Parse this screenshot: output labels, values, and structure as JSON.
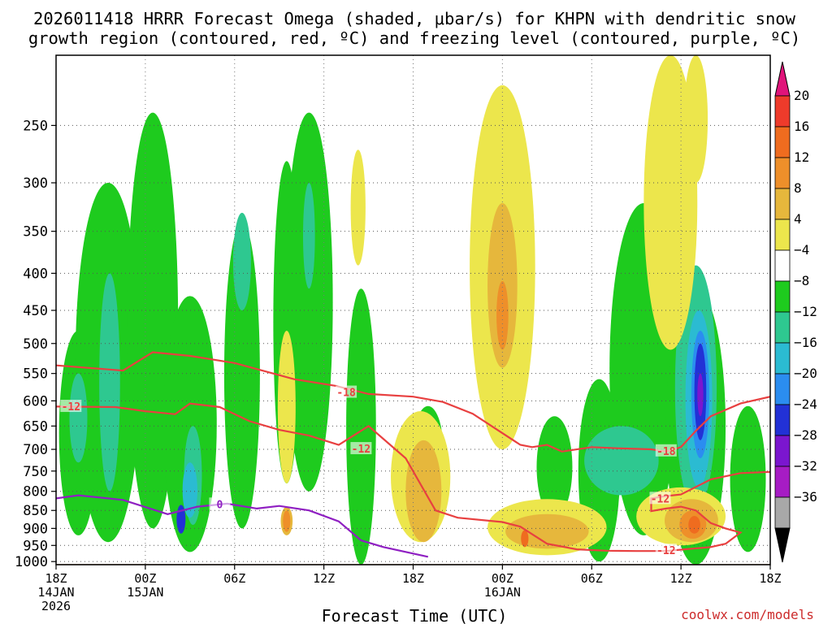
{
  "chart_data": {
    "type": "heatmap",
    "title_line1": "2026011418 HRRR Forecast Omega (shaded, μbar/s) for KHPN with dendritic snow",
    "title_line2": "growth region (contoured, red, ºC) and freezing level (contoured, purple, ºC)",
    "xlabel": "Forecast Time (UTC)",
    "credit": "coolwx.com/models",
    "x_range_hours": [
      0,
      48
    ],
    "y_range_hpa": [
      1010,
      200
    ],
    "y_ticks": [
      250,
      300,
      350,
      400,
      450,
      500,
      550,
      600,
      650,
      700,
      750,
      800,
      850,
      900,
      950,
      1000
    ],
    "x_ticks": [
      {
        "hour": 0,
        "lines": [
          "18Z",
          "14JAN",
          "2026"
        ]
      },
      {
        "hour": 6,
        "lines": [
          "00Z",
          "15JAN"
        ]
      },
      {
        "hour": 12,
        "lines": [
          "06Z"
        ]
      },
      {
        "hour": 18,
        "lines": [
          "12Z"
        ]
      },
      {
        "hour": 24,
        "lines": [
          "18Z"
        ]
      },
      {
        "hour": 30,
        "lines": [
          "00Z",
          "16JAN"
        ]
      },
      {
        "hour": 36,
        "lines": [
          "06Z"
        ]
      },
      {
        "hour": 42,
        "lines": [
          "12Z"
        ]
      },
      {
        "hour": 48,
        "lines": [
          "18Z"
        ]
      }
    ],
    "colorbar": {
      "levels": [
        20,
        16,
        12,
        8,
        4,
        -4,
        -8,
        -12,
        -16,
        -20,
        -24,
        -28,
        -32,
        -36
      ],
      "bins": [
        {
          "range": ">20",
          "color": "#e0147a"
        },
        {
          "range": "16 to 20",
          "color": "#ee3b2b"
        },
        {
          "range": "12 to 16",
          "color": "#ef6c1f"
        },
        {
          "range": "8 to 12",
          "color": "#ee8f2a"
        },
        {
          "range": "4 to 8",
          "color": "#e6b73c"
        },
        {
          "range": "0 to 4",
          "color": "#ece64c"
        },
        {
          "range": "-4 to 4",
          "color": "#ffffff"
        },
        {
          "range": "-8 to -4",
          "color": "#1ecb1e"
        },
        {
          "range": "-12 to -8",
          "color": "#2ec890"
        },
        {
          "range": "-16 to -12",
          "color": "#2bbbd2"
        },
        {
          "range": "-20 to -16",
          "color": "#2b8df0"
        },
        {
          "range": "-24 to -20",
          "color": "#2231d6"
        },
        {
          "range": "-28 to -24",
          "color": "#7b16cf"
        },
        {
          "range": "-32 to -28",
          "color": "#a61cc4"
        },
        {
          "range": "-36 to -32",
          "color": "#a8a8a8"
        },
        {
          "range": "<-36",
          "color": "#000000"
        }
      ]
    },
    "contours": {
      "dgz_upper_-18C": {
        "label": "-18",
        "color": "#e84040",
        "points": [
          [
            0,
            536
          ],
          [
            4.5,
            545
          ],
          [
            6.5,
            514
          ],
          [
            9,
            520
          ],
          [
            12,
            532
          ],
          [
            16,
            560
          ],
          [
            18.8,
            572
          ],
          [
            21,
            587
          ],
          [
            24,
            592
          ],
          [
            26,
            602
          ],
          [
            28,
            625
          ],
          [
            31.2,
            690
          ],
          [
            32,
            695
          ],
          [
            33,
            690
          ],
          [
            34,
            705
          ],
          [
            36,
            695
          ],
          [
            38,
            698
          ],
          [
            40,
            700
          ],
          [
            41,
            705
          ],
          [
            42,
            695
          ],
          [
            43,
            660
          ],
          [
            44,
            630
          ],
          [
            46,
            605
          ],
          [
            48,
            592
          ]
        ]
      },
      "dgz_lower_-12C": {
        "label": "-12",
        "color": "#e84040",
        "points": [
          [
            0,
            611
          ],
          [
            4,
            612
          ],
          [
            6,
            620
          ],
          [
            8,
            626
          ],
          [
            9,
            605
          ],
          [
            11,
            612
          ],
          [
            13,
            640
          ],
          [
            15,
            658
          ],
          [
            17,
            670
          ],
          [
            19,
            690
          ],
          [
            21,
            650
          ],
          [
            23.5,
            720
          ],
          [
            25.5,
            850
          ],
          [
            27,
            870
          ],
          [
            30,
            882
          ],
          [
            31.2,
            895
          ],
          [
            33,
            945
          ],
          [
            35,
            962
          ],
          [
            37,
            966
          ],
          [
            39,
            967
          ],
          [
            41,
            967
          ],
          [
            42,
            963
          ],
          [
            44,
            955
          ],
          [
            45,
            945
          ],
          [
            46,
            912
          ],
          [
            45,
            900
          ],
          [
            44,
            885
          ],
          [
            43,
            850
          ],
          [
            42,
            840
          ],
          [
            41,
            845
          ],
          [
            40,
            852
          ],
          [
            40,
            818
          ],
          [
            41,
            812
          ],
          [
            42,
            808
          ],
          [
            44,
            770
          ],
          [
            46,
            755
          ],
          [
            48,
            752
          ]
        ]
      },
      "freezing_level_0C": {
        "label": "0",
        "color": "#8f1fc2",
        "points": [
          [
            0,
            818
          ],
          [
            1.5,
            810
          ],
          [
            4.5,
            822
          ],
          [
            7.5,
            860
          ],
          [
            9.5,
            840
          ],
          [
            11.5,
            832
          ],
          [
            13.5,
            845
          ],
          [
            15,
            838
          ],
          [
            17,
            850
          ],
          [
            19,
            880
          ],
          [
            20.5,
            935
          ],
          [
            22,
            955
          ],
          [
            24,
            975
          ],
          [
            25,
            985
          ]
        ]
      }
    },
    "labels": {
      "dgz_upper_-18C": "-18",
      "dgz_lower_-12C": "-12",
      "freezing_level_0C": "0"
    },
    "shaded_regions": [
      {
        "level": "-8 to -4",
        "color": "#1ecb1e",
        "center": [
          1.5,
          700
        ],
        "radius": [
          1.3,
          220
        ]
      },
      {
        "level": "-8 to -4",
        "color": "#1ecb1e",
        "center": [
          3.5,
          620
        ],
        "radius": [
          2.2,
          320
        ]
      },
      {
        "level": "-8 to -4",
        "color": "#1ecb1e",
        "center": [
          6.5,
          570
        ],
        "radius": [
          1.7,
          330
        ]
      },
      {
        "level": "-8 to -4",
        "color": "#1ecb1e",
        "center": [
          9,
          700
        ],
        "radius": [
          1.8,
          270
        ]
      },
      {
        "level": "-8 to -4",
        "color": "#1ecb1e",
        "center": [
          12.5,
          620
        ],
        "radius": [
          1.2,
          280
        ]
      },
      {
        "level": "-8 to -4",
        "color": "#1ecb1e",
        "center": [
          15.5,
          530
        ],
        "radius": [
          0.9,
          250
        ]
      },
      {
        "level": "-8 to -4",
        "color": "#1ecb1e",
        "center": [
          17,
          520
        ],
        "radius": [
          1.6,
          280
        ]
      },
      {
        "level": "-8 to -4",
        "color": "#1ecb1e",
        "center": [
          20.5,
          720
        ],
        "radius": [
          1,
          300
        ]
      },
      {
        "level": "-8 to -4",
        "color": "#1ecb1e",
        "center": [
          25,
          700
        ],
        "radius": [
          1,
          90
        ]
      },
      {
        "level": "-8 to -4",
        "color": "#1ecb1e",
        "center": [
          33.5,
          750
        ],
        "radius": [
          1.2,
          120
        ]
      },
      {
        "level": "-8 to -4",
        "color": "#1ecb1e",
        "center": [
          36.5,
          780
        ],
        "radius": [
          1.4,
          220
        ]
      },
      {
        "level": "-8 to -4",
        "color": "#1ecb1e",
        "center": [
          39.5,
          620
        ],
        "radius": [
          2.3,
          300
        ]
      },
      {
        "level": "-8 to -4",
        "color": "#1ecb1e",
        "center": [
          43,
          720
        ],
        "radius": [
          2,
          300
        ]
      },
      {
        "level": "-8 to -4",
        "color": "#1ecb1e",
        "center": [
          46.5,
          790
        ],
        "radius": [
          1.2,
          180
        ]
      },
      {
        "level": "-12 to -8",
        "color": "#2ec890",
        "center": [
          3.6,
          600
        ],
        "radius": [
          0.7,
          200
        ]
      },
      {
        "level": "-12 to -8",
        "color": "#2ec890",
        "center": [
          1.5,
          640
        ],
        "radius": [
          0.6,
          90
        ]
      },
      {
        "level": "-12 to -8",
        "color": "#2ec890",
        "center": [
          9.2,
          770
        ],
        "radius": [
          0.6,
          120
        ]
      },
      {
        "level": "-12 to -8",
        "color": "#2ec890",
        "center": [
          12.5,
          390
        ],
        "radius": [
          0.6,
          60
        ]
      },
      {
        "level": "-12 to -8",
        "color": "#2ec890",
        "center": [
          17,
          360
        ],
        "radius": [
          0.4,
          60
        ]
      },
      {
        "level": "-12 to -8",
        "color": "#2ec890",
        "center": [
          38,
          730
        ],
        "radius": [
          2.5,
          80
        ]
      },
      {
        "level": "-12 to -8",
        "color": "#2ec890",
        "center": [
          43,
          620
        ],
        "radius": [
          1.4,
          230
        ]
      },
      {
        "level": "-16 to -12",
        "color": "#2bbbd2",
        "center": [
          9,
          800
        ],
        "radius": [
          0.5,
          70
        ]
      },
      {
        "level": "-16 to -12",
        "color": "#2bbbd2",
        "center": [
          43.2,
          620
        ],
        "radius": [
          0.9,
          170
        ]
      },
      {
        "level": "-20 to -16",
        "color": "#2b8df0",
        "center": [
          43.3,
          600
        ],
        "radius": [
          0.6,
          120
        ]
      },
      {
        "level": "-24 to -20",
        "color": "#2231d6",
        "center": [
          43.3,
          590
        ],
        "radius": [
          0.4,
          90
        ]
      },
      {
        "level": "-28 to -24",
        "color": "#7b16cf",
        "center": [
          43.3,
          590
        ],
        "radius": [
          0.2,
          40
        ]
      },
      {
        "level": "-24 to -20",
        "color": "#2231d6",
        "center": [
          8.4,
          875
        ],
        "radius": [
          0.3,
          40
        ]
      },
      {
        "level": "0 to 4",
        "color": "#ece64c",
        "center": [
          15.5,
          630
        ],
        "radius": [
          0.6,
          150
        ]
      },
      {
        "level": "0 to 4",
        "color": "#ece64c",
        "center": [
          20.3,
          330
        ],
        "radius": [
          0.5,
          60
        ]
      },
      {
        "level": "0 to 4",
        "color": "#ece64c",
        "center": [
          24.5,
          780
        ],
        "radius": [
          2,
          160
        ]
      },
      {
        "level": "0 to 4",
        "color": "#ece64c",
        "center": [
          30,
          460
        ],
        "radius": [
          2.2,
          240
        ]
      },
      {
        "level": "0 to 4",
        "color": "#ece64c",
        "center": [
          33,
          900
        ],
        "radius": [
          4,
          80
        ]
      },
      {
        "level": "0 to 4",
        "color": "#ece64c",
        "center": [
          42,
          870
        ],
        "radius": [
          3,
          80
        ]
      },
      {
        "level": "0 to 4",
        "color": "#ece64c",
        "center": [
          41.3,
          350
        ],
        "radius": [
          1.8,
          160
        ]
      },
      {
        "level": "0 to 4",
        "color": "#ece64c",
        "center": [
          43,
          230
        ],
        "radius": [
          0.8,
          70
        ]
      },
      {
        "level": "4 to 8",
        "color": "#e6b73c",
        "center": [
          24.7,
          810
        ],
        "radius": [
          1.2,
          130
        ]
      },
      {
        "level": "4 to 8",
        "color": "#e6b73c",
        "center": [
          30,
          430
        ],
        "radius": [
          1,
          110
        ]
      },
      {
        "level": "4 to 8",
        "color": "#e6b73c",
        "center": [
          33,
          910
        ],
        "radius": [
          2.8,
          50
        ]
      },
      {
        "level": "4 to 8",
        "color": "#e6b73c",
        "center": [
          42.7,
          880
        ],
        "radius": [
          1.8,
          60
        ]
      },
      {
        "level": "4 to 8",
        "color": "#e6b73c",
        "center": [
          15.5,
          880
        ],
        "radius": [
          0.4,
          40
        ]
      },
      {
        "level": "8 to 12",
        "color": "#ee8f2a",
        "center": [
          15.5,
          880
        ],
        "radius": [
          0.25,
          30
        ]
      },
      {
        "level": "8 to 12",
        "color": "#ee8f2a",
        "center": [
          42.8,
          890
        ],
        "radius": [
          0.9,
          40
        ]
      },
      {
        "level": "8 to 12",
        "color": "#ee8f2a",
        "center": [
          30,
          460
        ],
        "radius": [
          0.4,
          50
        ]
      },
      {
        "level": "12 to 16",
        "color": "#ef6c1f",
        "center": [
          42.9,
          890
        ],
        "radius": [
          0.4,
          25
        ]
      },
      {
        "level": "12 to 16",
        "color": "#ef6c1f",
        "center": [
          31.5,
          930
        ],
        "radius": [
          0.25,
          25
        ]
      }
    ],
    "terrain_color": "#8b4a24",
    "surface_hpa": 1008
  }
}
